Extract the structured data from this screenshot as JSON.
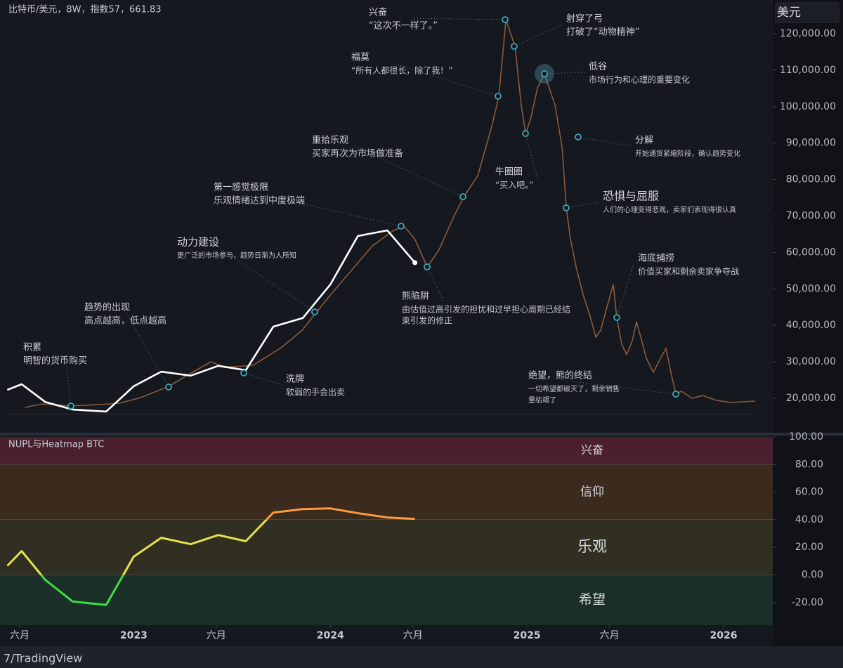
{
  "chart_data": [
    {
      "type": "line",
      "title": "比特币/美元，8W，指数57，661.83",
      "unit": "美元",
      "xlim": [
        2022.32,
        2026.25
      ],
      "ylim": [
        10750,
        129250
      ],
      "yticks": [
        {
          "value": 20000,
          "label": "20,000.00"
        },
        {
          "value": 30000,
          "label": "30,000.00"
        },
        {
          "value": 40000,
          "label": "40,000.00"
        },
        {
          "value": 50000,
          "label": "50,000.00"
        },
        {
          "value": 60000,
          "label": "60,000.00"
        },
        {
          "value": 70000,
          "label": "70,000.00"
        },
        {
          "value": 80000,
          "label": "80,000.00"
        },
        {
          "value": 90000,
          "label": "90,000.00"
        },
        {
          "value": 100000,
          "label": "100,000.00"
        },
        {
          "value": 110000,
          "label": "110,000.00"
        },
        {
          "value": 120000,
          "label": "120,000.00"
        }
      ],
      "grid": false,
      "series": [
        {
          "color": "#8a5a3c",
          "x": [
            2022.446,
            2022.536,
            2022.679,
            2022.821,
            2022.929,
            2023.036,
            2023.179,
            2023.286,
            2023.393,
            2023.464,
            2023.607,
            2023.75,
            2023.857,
            2024.0,
            2024.107,
            2024.214,
            2024.321,
            2024.375,
            2024.429,
            2024.493,
            2024.554,
            2024.625,
            2024.679,
            2024.75,
            2024.821,
            2024.857,
            2024.893,
            2024.939,
            2024.971,
            2024.993,
            2025.018,
            2025.054,
            2025.089,
            2025.143,
            2025.179,
            2025.2,
            2025.221,
            2025.25,
            2025.286,
            2025.321,
            2025.35,
            2025.375,
            2025.404,
            2025.439,
            2025.457,
            2025.482,
            2025.507,
            2025.536,
            2025.557,
            2025.579,
            2025.607,
            2025.643,
            2025.679,
            2025.707,
            2025.732,
            2025.757,
            2025.786,
            2025.839,
            2025.893,
            2025.964,
            2026.036,
            2026.161
          ],
          "values": [
            17500,
            18460,
            17880,
            18270,
            18650,
            20190,
            23280,
            26740,
            30020,
            28480,
            29060,
            33870,
            38690,
            48320,
            55070,
            61810,
            66050,
            67210,
            63740,
            56030,
            60850,
            69520,
            75300,
            81080,
            94570,
            102850,
            123850,
            116530,
            100350,
            92640,
            96490,
            105160,
            109020,
            100350,
            88790,
            72220,
            63740,
            56030,
            48320,
            42540,
            36760,
            38690,
            44470,
            51210,
            42160,
            34840,
            31950,
            35800,
            41000,
            36760,
            30980,
            27130,
            30980,
            33680,
            27130,
            21160,
            21930,
            20000,
            20770,
            19420,
            18840,
            19230
          ]
        },
        {
          "color": "#ffffff",
          "x": [
            2022.357,
            2022.43,
            2022.55,
            2022.69,
            2022.86,
            2023.0,
            2023.14,
            2023.29,
            2023.43,
            2023.57,
            2023.71,
            2023.86,
            2024.0,
            2024.14,
            2024.29,
            2024.43
          ],
          "values": [
            22300,
            23850,
            19000,
            16900,
            16350,
            23300,
            27300,
            26200,
            28900,
            27700,
            39650,
            42000,
            51200,
            64500,
            66050,
            57200
          ]
        }
      ],
      "annotations": [
        {
          "title": "积累",
          "lines": [
            "明智的货币购买"
          ]
        },
        {
          "title": "趋势的出现",
          "lines": [
            "高点越高，低点越高"
          ]
        },
        {
          "title": "动力建设",
          "lines": [
            "更广泛的市场参与，趋势日渐为人所知"
          ]
        },
        {
          "title": "第一感觉极限",
          "lines": [
            "乐观情绪达到中度极端"
          ]
        },
        {
          "title": "重拾乐观",
          "lines": [
            "买家再次为市场做准备"
          ]
        },
        {
          "title": "福莫",
          "lines": [
            "“所有人都很长，除了我！”"
          ]
        },
        {
          "title": "兴奋",
          "lines": [
            "“这次不一样了。”"
          ]
        },
        {
          "title": "射穿了弓",
          "lines": [
            "打破了“动物精神”"
          ]
        },
        {
          "title": "低谷",
          "lines": [
            "市场行为和心理的重要变化"
          ]
        },
        {
          "title": "分解",
          "lines": [
            "开始通货紧缩阶段，确认趋势变化"
          ]
        },
        {
          "title": "牛圈圈",
          "lines": [
            "“买入吧。”"
          ]
        },
        {
          "title": "恐惧与屈服",
          "lines": [
            "人们的心理变得悲观，卖家们表现得很认真"
          ]
        },
        {
          "title": "熊陷阱",
          "lines": [
            "由估值过高引发的担忧和过早担心周期已经结",
            "束引发的修正"
          ]
        },
        {
          "title": "洗牌",
          "lines": [
            "软弱的手会出卖"
          ]
        },
        {
          "title": "海底捕捞",
          "lines": [
            "价值买家和剩余卖家争夺战"
          ]
        },
        {
          "title": "绝望，熊的终结",
          "lines": [
            "一切希望都破灭了，剩余销售",
            "量枯竭了"
          ]
        }
      ]
    },
    {
      "type": "line",
      "title": "NUPL与Heatmap BTC",
      "xlim": [
        2022.32,
        2026.25
      ],
      "xticks": [
        {
          "value": 2022.42,
          "label": "六月"
        },
        2023,
        {
          "value": 2023.42,
          "label": "六月"
        },
        2024,
        {
          "value": 2024.42,
          "label": "六月"
        },
        2025,
        {
          "value": 2025.42,
          "label": "六月"
        },
        2026
      ],
      "ylim": [
        -36.4,
        101
      ],
      "yticks": [
        {
          "value": 100,
          "label": "100.00"
        },
        {
          "value": 80,
          "label": "80.00"
        },
        {
          "value": 60,
          "label": "60.00"
        },
        {
          "value": 40,
          "label": "40.00"
        },
        {
          "value": 20,
          "label": "20.00"
        },
        {
          "value": 0,
          "label": "0.00"
        },
        {
          "value": -20,
          "label": "-20.00"
        }
      ],
      "zones": [
        {
          "name": "兴奋",
          "from": 80,
          "to": 100,
          "color": "#4a1f2e"
        },
        {
          "name": "信仰",
          "from": 40,
          "to": 80,
          "color": "#3b2a1e"
        },
        {
          "name": "乐观",
          "from": 0,
          "to": 40,
          "color": "#302f22"
        },
        {
          "name": "希望",
          "to": 0,
          "color": "#1a2f27"
        }
      ],
      "series": [
        {
          "x": [
            2022.357,
            2022.43,
            2022.55,
            2022.69,
            2022.86,
            2023.0,
            2023.14,
            2023.29,
            2023.43,
            2023.57,
            2023.71,
            2023.86,
            2024.0,
            2024.14,
            2024.29,
            2024.43
          ],
          "values": [
            6.6,
            17.3,
            -3.6,
            -19.3,
            -21.8,
            13.2,
            26.9,
            22.3,
            28.9,
            24.4,
            45.2,
            47.7,
            48.2,
            44.7,
            41.6,
            40.6
          ],
          "color_bands": [
            {
              "from": 40,
              "color": "#ff9a3c"
            },
            {
              "from": 0,
              "color": "#e6e04a"
            },
            {
              "color": "#3edc3e"
            }
          ]
        }
      ]
    }
  ],
  "footer": "7/TradingView"
}
